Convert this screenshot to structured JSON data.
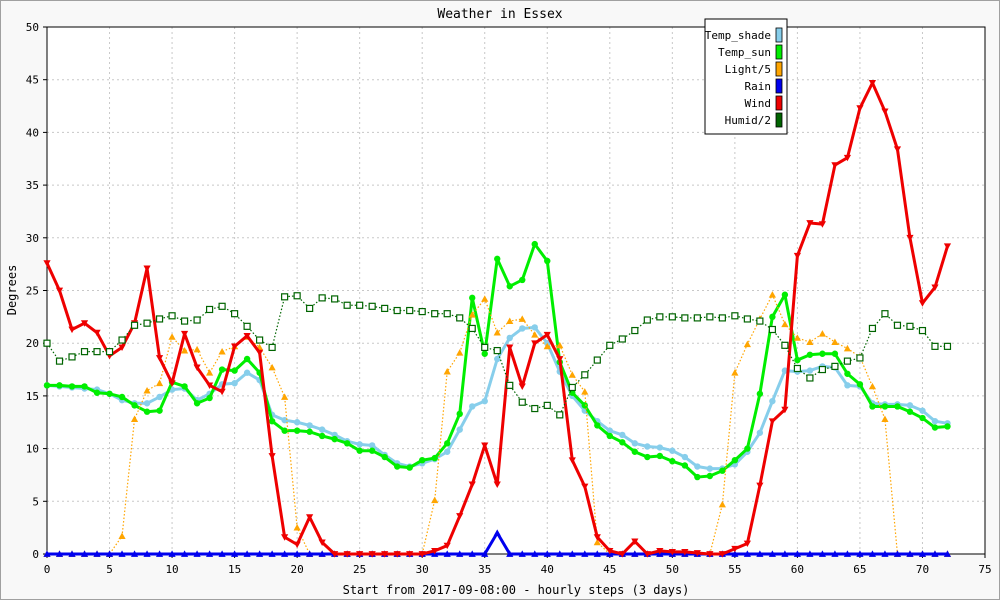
{
  "chart_data": {
    "type": "line",
    "title": "Weather in Essex",
    "xlabel": "Start from 2017-09-08:00 - hourly steps (3 days)",
    "ylabel": "Degrees",
    "xlim": [
      0,
      75
    ],
    "ylim": [
      0,
      50
    ],
    "xticks": [
      0,
      5,
      10,
      15,
      20,
      25,
      30,
      35,
      40,
      45,
      50,
      55,
      60,
      65,
      70,
      75
    ],
    "yticks": [
      0,
      5,
      10,
      15,
      20,
      25,
      30,
      35,
      40,
      45,
      50
    ],
    "grid": true,
    "legend_position": "top-right",
    "series": [
      {
        "name": "Temp_shade",
        "color": "#87ceeb",
        "line": "solid",
        "marker": "circle",
        "values": [
          16,
          15.9,
          15.8,
          15.7,
          15.6,
          15.2,
          14.6,
          14.3,
          14.3,
          14.9,
          15.6,
          15.7,
          14.6,
          15.2,
          16.1,
          16.2,
          17.2,
          16.5,
          13.2,
          12.7,
          12.5,
          12.2,
          11.8,
          11.3,
          10.7,
          10.4,
          10.3,
          9.4,
          8.6,
          8.3,
          8.6,
          9,
          9.7,
          11.8,
          14,
          14.5,
          18.5,
          20.5,
          21.4,
          21.5,
          20,
          17.3,
          15,
          13.6,
          12.6,
          11.7,
          11.3,
          10.5,
          10.2,
          10.1,
          9.8,
          9.2,
          8.3,
          8.1,
          8.1,
          8.5,
          9.7,
          11.5,
          14.5,
          17.4,
          17.3,
          17.4,
          17.8,
          17.7,
          16,
          15.9,
          14.3,
          14.2,
          14.2,
          14.1,
          13.6,
          12.6,
          12.4
        ]
      },
      {
        "name": "Temp_sun",
        "color": "#00ee00",
        "line": "solid",
        "marker": "circle",
        "values": [
          16,
          16,
          15.9,
          15.9,
          15.3,
          15.2,
          14.9,
          14.1,
          13.5,
          13.6,
          16.3,
          15.9,
          14.3,
          14.8,
          17.5,
          17.4,
          18.5,
          17.2,
          12.6,
          11.7,
          11.7,
          11.6,
          11.2,
          10.9,
          10.5,
          9.8,
          9.8,
          9.2,
          8.3,
          8.2,
          8.9,
          9.1,
          10.5,
          13.3,
          24.3,
          19,
          28,
          25.4,
          26,
          29.4,
          27.8,
          18.2,
          15.3,
          14.1,
          12.2,
          11.2,
          10.6,
          9.7,
          9.2,
          9.3,
          8.8,
          8.4,
          7.3,
          7.4,
          7.9,
          8.9,
          10,
          15.2,
          22.5,
          24.6,
          18.4,
          18.9,
          19,
          19,
          17.1,
          16.1,
          14,
          14,
          14,
          13.5,
          12.9,
          12,
          12.1
        ]
      },
      {
        "name": "Light/5",
        "color": "#ffa500",
        "line": "dotted",
        "marker": "triangle",
        "values": [
          0,
          0,
          0,
          0,
          0,
          0,
          1.7,
          12.8,
          15.5,
          16.2,
          20.6,
          19.3,
          19.4,
          17.2,
          19.2,
          19.7,
          20.6,
          19.6,
          17.7,
          14.9,
          2.5,
          0,
          0,
          0,
          0,
          0,
          0,
          0,
          0,
          0,
          0,
          5.1,
          17.3,
          19.1,
          22.7,
          24.2,
          21,
          22.1,
          22.3,
          20.8,
          19.7,
          19.8,
          17,
          15.4,
          1.1,
          0,
          0,
          0,
          0,
          0,
          0,
          0,
          0,
          0,
          4.7,
          17.2,
          19.9,
          22.3,
          24.6,
          21.8,
          20.5,
          20.1,
          20.9,
          20.1,
          19.5,
          18.7,
          15.9,
          12.8,
          0,
          0,
          0,
          0,
          0
        ]
      },
      {
        "name": "Rain",
        "color": "#0000ee",
        "line": "solid",
        "marker": "triangle",
        "values": [
          0,
          0,
          0,
          0,
          0,
          0,
          0,
          0,
          0,
          0,
          0,
          0,
          0,
          0,
          0,
          0,
          0,
          0,
          0,
          0,
          0,
          0,
          0,
          0,
          0,
          0,
          0,
          0,
          0,
          0,
          0,
          0,
          0,
          0,
          0,
          0,
          2,
          0,
          0,
          0,
          0,
          0,
          0,
          0,
          0,
          0,
          0,
          0,
          0,
          0,
          0,
          0,
          0,
          0,
          0,
          0,
          0,
          0,
          0,
          0,
          0,
          0,
          0,
          0,
          0,
          0,
          0,
          0,
          0,
          0,
          0,
          0,
          0
        ]
      },
      {
        "name": "Wind",
        "color": "#ee0000",
        "line": "solid",
        "marker": "triangle-down",
        "values": [
          27.6,
          25,
          21.3,
          21.9,
          21,
          18.8,
          19.6,
          21.9,
          27.1,
          18.6,
          16.2,
          20.9,
          17.7,
          16,
          15.4,
          19.7,
          20.7,
          19.1,
          9.3,
          1.6,
          0.9,
          3.5,
          1.1,
          0,
          0,
          0,
          0,
          0,
          0,
          0,
          0,
          0.3,
          0.8,
          3.6,
          6.6,
          10.3,
          6.6,
          19.6,
          15.9,
          20,
          20.8,
          18.5,
          8.9,
          6.4,
          1.6,
          0.3,
          0,
          1.2,
          0,
          0.3,
          0.2,
          0.2,
          0.1,
          0,
          0,
          0.5,
          1,
          6.5,
          12.6,
          13.7,
          28.3,
          31.4,
          31.3,
          36.9,
          37.6,
          42.3,
          44.7,
          42,
          38.4,
          30,
          23.8,
          25.3,
          29.2
        ]
      },
      {
        "name": "Humid/2",
        "color": "#006400",
        "line": "dotted",
        "marker": "square",
        "values": [
          20,
          18.3,
          18.7,
          19.2,
          19.2,
          19.2,
          20.3,
          21.7,
          21.9,
          22.3,
          22.6,
          22.1,
          22.2,
          23.2,
          23.5,
          22.8,
          21.6,
          20.3,
          19.6,
          24.4,
          24.5,
          23.3,
          24.3,
          24.2,
          23.6,
          23.6,
          23.5,
          23.3,
          23.1,
          23.1,
          23,
          22.8,
          22.8,
          22.4,
          21.4,
          19.6,
          19.3,
          16,
          14.4,
          13.8,
          14.1,
          13.2,
          15.8,
          17,
          18.4,
          19.8,
          20.4,
          21.2,
          22.2,
          22.5,
          22.5,
          22.4,
          22.4,
          22.5,
          22.4,
          22.6,
          22.3,
          22.1,
          21.3,
          19.8,
          17.6,
          16.7,
          17.5,
          17.8,
          18.3,
          18.6,
          21.4,
          22.8,
          21.7,
          21.6,
          21.2,
          19.7,
          19.7
        ]
      }
    ]
  }
}
